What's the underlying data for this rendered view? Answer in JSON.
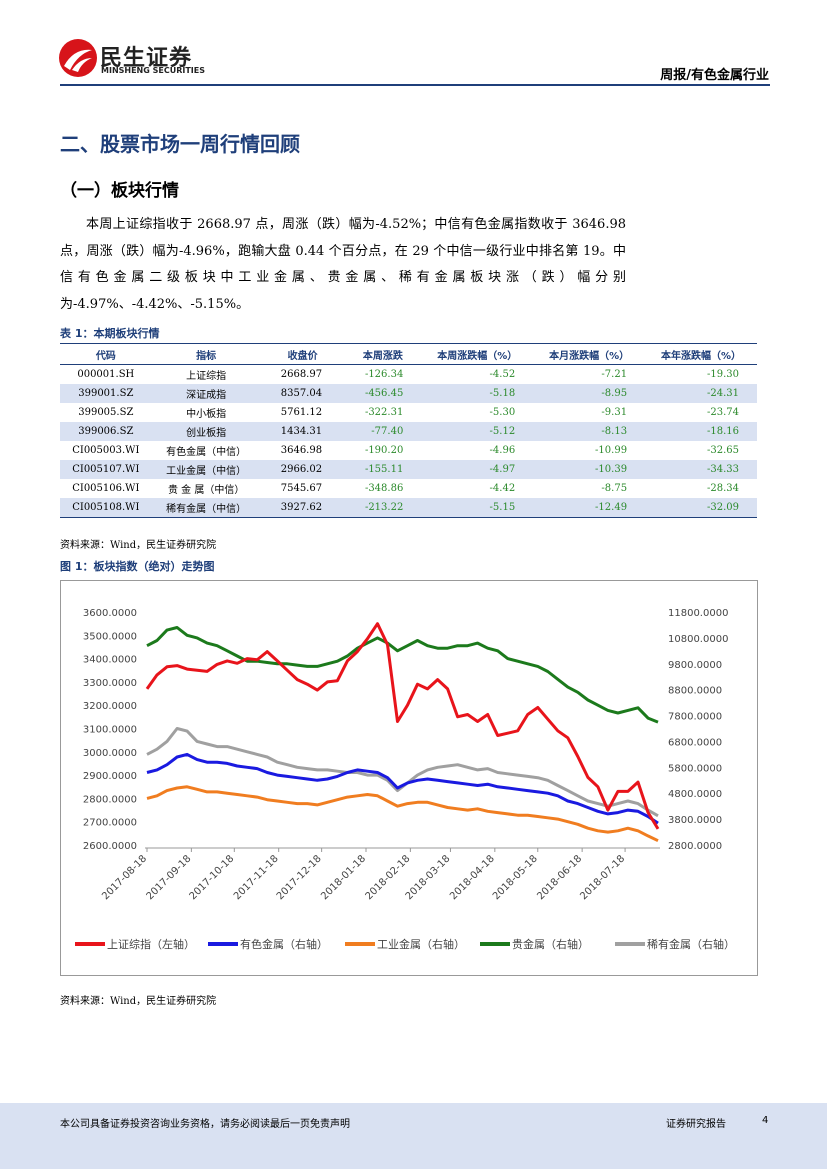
{
  "header": {
    "brand": "民生证券",
    "brand_en": "MINSHENG SECURITIES",
    "report": "周报/有色金属行业"
  },
  "section_title": "二、股票市场一周行情回顾",
  "subsection_title": "（一）板块行情",
  "paragraph": "本周上证综指收于 2668.97 点，周涨（跌）幅为-4.52%；中信有色金属指数收于 3646.98 点，周涨（跌）幅为-4.96%，跑输大盘 0.44 个百分点，在 29 个中信一级行业中排名第 19。中信有色金属二级板块中工业金属、贵金属、稀有金属板块涨（跌）幅分别为-4.97%、-4.42%、-5.15%。",
  "table": {
    "caption": "表 1：本期板块行情",
    "headers": [
      "代码",
      "指标",
      "收盘价",
      "本周涨跌",
      "本周涨跌幅（%）",
      "本月涨跌幅（%）",
      "本年涨跌幅（%）"
    ],
    "rows": [
      [
        "000001.SH",
        "上证综指",
        "2668.97",
        "-126.34",
        "-4.52",
        "-7.21",
        "-19.30"
      ],
      [
        "399001.SZ",
        "深证成指",
        "8357.04",
        "-456.45",
        "-5.18",
        "-8.95",
        "-24.31"
      ],
      [
        "399005.SZ",
        "中小板指",
        "5761.12",
        "-322.31",
        "-5.30",
        "-9.31",
        "-23.74"
      ],
      [
        "399006.SZ",
        "创业板指",
        "1434.31",
        "-77.40",
        "-5.12",
        "-8.13",
        "-18.16"
      ],
      [
        "CI005003.WI",
        "有色金属（中信）",
        "3646.98",
        "-190.20",
        "-4.96",
        "-10.99",
        "-32.65"
      ],
      [
        "CI005107.WI",
        "工业金属（中信）",
        "2966.02",
        "-155.11",
        "-4.97",
        "-10.39",
        "-34.33"
      ],
      [
        "CI005106.WI",
        "贵 金 属（中信）",
        "7545.67",
        "-348.86",
        "-4.42",
        "-8.75",
        "-28.34"
      ],
      [
        "CI005108.WI",
        "稀有金属（中信）",
        "3927.62",
        "-213.22",
        "-5.15",
        "-12.49",
        "-32.09"
      ]
    ],
    "source": "资料来源：Wind，民生证券研究院"
  },
  "figure_caption": "图 1：板块指数（绝对）走势图",
  "chart_data": {
    "type": "line",
    "x": [
      "2017-08-18",
      "2017-08-25",
      "2017-09-01",
      "2017-09-08",
      "2017-09-15",
      "2017-09-22",
      "2017-09-29",
      "2017-10-06",
      "2017-10-13",
      "2017-10-20",
      "2017-10-27",
      "2017-11-03",
      "2017-11-10",
      "2017-11-17",
      "2017-11-24",
      "2017-12-01",
      "2017-12-08",
      "2017-12-15",
      "2017-12-22",
      "2017-12-29",
      "2018-01-05",
      "2018-01-12",
      "2018-01-19",
      "2018-01-26",
      "2018-02-02",
      "2018-02-09",
      "2018-02-16",
      "2018-02-23",
      "2018-03-02",
      "2018-03-09",
      "2018-03-16",
      "2018-03-23",
      "2018-03-30",
      "2018-04-06",
      "2018-04-13",
      "2018-04-20",
      "2018-04-27",
      "2018-05-04",
      "2018-05-11",
      "2018-05-18",
      "2018-05-25",
      "2018-06-01",
      "2018-06-08",
      "2018-06-15",
      "2018-06-22",
      "2018-06-29",
      "2018-07-06",
      "2018-07-13",
      "2018-07-20",
      "2018-07-27",
      "2018-08-03",
      "2018-08-10"
    ],
    "xticks": [
      "2017-08-18",
      "2017-09-18",
      "2017-10-18",
      "2017-11-18",
      "2017-12-18",
      "2018-01-18",
      "2018-02-18",
      "2018-03-18",
      "2018-04-18",
      "2018-05-18",
      "2018-06-18",
      "2018-07-18"
    ],
    "ylim": [
      2600,
      3600
    ],
    "yticks": [
      {
        "value": 2600,
        "label": "2600.0000"
      },
      {
        "value": 2700,
        "label": "2700.0000"
      },
      {
        "value": 2800,
        "label": "2800.0000"
      },
      {
        "value": 2900,
        "label": "2900.0000"
      },
      {
        "value": 3000,
        "label": "3000.0000"
      },
      {
        "value": 3100,
        "label": "3100.0000"
      },
      {
        "value": 3200,
        "label": "3200.0000"
      },
      {
        "value": 3300,
        "label": "3300.0000"
      },
      {
        "value": 3400,
        "label": "3400.0000"
      },
      {
        "value": 3500,
        "label": "3500.0000"
      },
      {
        "value": 3600,
        "label": "3600.0000"
      }
    ],
    "y2lim": [
      2800,
      11800
    ],
    "y2ticks": [
      {
        "value": 2800,
        "label": "2800.0000"
      },
      {
        "value": 3800,
        "label": "3800.0000"
      },
      {
        "value": 4800,
        "label": "4800.0000"
      },
      {
        "value": 5800,
        "label": "5800.0000"
      },
      {
        "value": 6800,
        "label": "6800.0000"
      },
      {
        "value": 7800,
        "label": "7800.0000"
      },
      {
        "value": 8800,
        "label": "8800.0000"
      },
      {
        "value": 9800,
        "label": "9800.0000"
      },
      {
        "value": 10800,
        "label": "10800.0000"
      },
      {
        "value": 11800,
        "label": "11800.0000"
      }
    ],
    "series": [
      {
        "name": "上证综指（左轴）",
        "color": "#e8141b",
        "values": [
          3270,
          3330,
          3365,
          3370,
          3355,
          3350,
          3345,
          3375,
          3390,
          3380,
          3400,
          3395,
          3430,
          3390,
          3350,
          3310,
          3290,
          3265,
          3300,
          3305,
          3390,
          3430,
          3485,
          3550,
          3460,
          3130,
          3200,
          3290,
          3270,
          3310,
          3270,
          3150,
          3160,
          3130,
          3160,
          3070,
          3080,
          3090,
          3160,
          3190,
          3140,
          3090,
          3060,
          2980,
          2890,
          2850,
          2750,
          2830,
          2830,
          2870,
          2740,
          2668.97
        ]
      },
      {
        "name": "有色金属（右轴）",
        "color": "#1a1ae0",
        "axis": "y2",
        "values": [
          5600,
          5700,
          5900,
          6200,
          6300,
          6100,
          6000,
          6000,
          5950,
          5850,
          5800,
          5750,
          5600,
          5500,
          5450,
          5400,
          5350,
          5300,
          5350,
          5450,
          5600,
          5700,
          5650,
          5600,
          5400,
          5000,
          5200,
          5300,
          5350,
          5300,
          5250,
          5200,
          5150,
          5100,
          5150,
          5050,
          5000,
          4950,
          4900,
          4850,
          4800,
          4700,
          4500,
          4400,
          4250,
          4100,
          4000,
          4050,
          4150,
          4100,
          3900,
          3646.98
        ]
      },
      {
        "name": "工业金属（右轴）",
        "color": "#f07d20",
        "axis": "y2",
        "values": [
          4600,
          4700,
          4900,
          5000,
          5050,
          4950,
          4850,
          4850,
          4800,
          4750,
          4700,
          4650,
          4550,
          4500,
          4450,
          4400,
          4400,
          4350,
          4450,
          4550,
          4650,
          4700,
          4750,
          4700,
          4500,
          4300,
          4400,
          4450,
          4450,
          4350,
          4250,
          4200,
          4150,
          4200,
          4100,
          4050,
          4000,
          3950,
          3950,
          3900,
          3850,
          3800,
          3700,
          3600,
          3450,
          3350,
          3300,
          3350,
          3450,
          3350,
          3150,
          2966.02
        ]
      },
      {
        "name": "贵金属（右轴）",
        "color": "#1c7a1c",
        "axis": "y2",
        "values": [
          10500,
          10700,
          11100,
          11200,
          10900,
          10800,
          10600,
          10500,
          10300,
          10100,
          9900,
          9900,
          9850,
          9800,
          9800,
          9750,
          9700,
          9700,
          9800,
          9900,
          10100,
          10400,
          10600,
          10800,
          10600,
          10300,
          10500,
          10700,
          10500,
          10400,
          10400,
          10500,
          10500,
          10600,
          10400,
          10300,
          10000,
          9900,
          9800,
          9700,
          9500,
          9200,
          8900,
          8700,
          8400,
          8200,
          8000,
          7900,
          8000,
          8100,
          7700,
          7545.67
        ]
      },
      {
        "name": "稀有金属（右轴）",
        "color": "#a0a0a0",
        "axis": "y2",
        "values": [
          6300,
          6500,
          6800,
          7300,
          7200,
          6800,
          6700,
          6600,
          6600,
          6500,
          6400,
          6300,
          6200,
          6000,
          5900,
          5800,
          5750,
          5700,
          5700,
          5650,
          5600,
          5600,
          5500,
          5500,
          5300,
          4900,
          5200,
          5500,
          5700,
          5800,
          5850,
          5900,
          5800,
          5700,
          5750,
          5600,
          5550,
          5500,
          5450,
          5400,
          5300,
          5100,
          4900,
          4700,
          4500,
          4400,
          4300,
          4400,
          4500,
          4400,
          4150,
          3927.62
        ]
      }
    ]
  },
  "figure_source": "资料来源：Wind，民生证券研究院",
  "footer": {
    "disclaimer": "本公司具备证券投资咨询业务资格，请务必阅读最后一页免责声明",
    "type": "证券研究报告",
    "page": "4"
  }
}
